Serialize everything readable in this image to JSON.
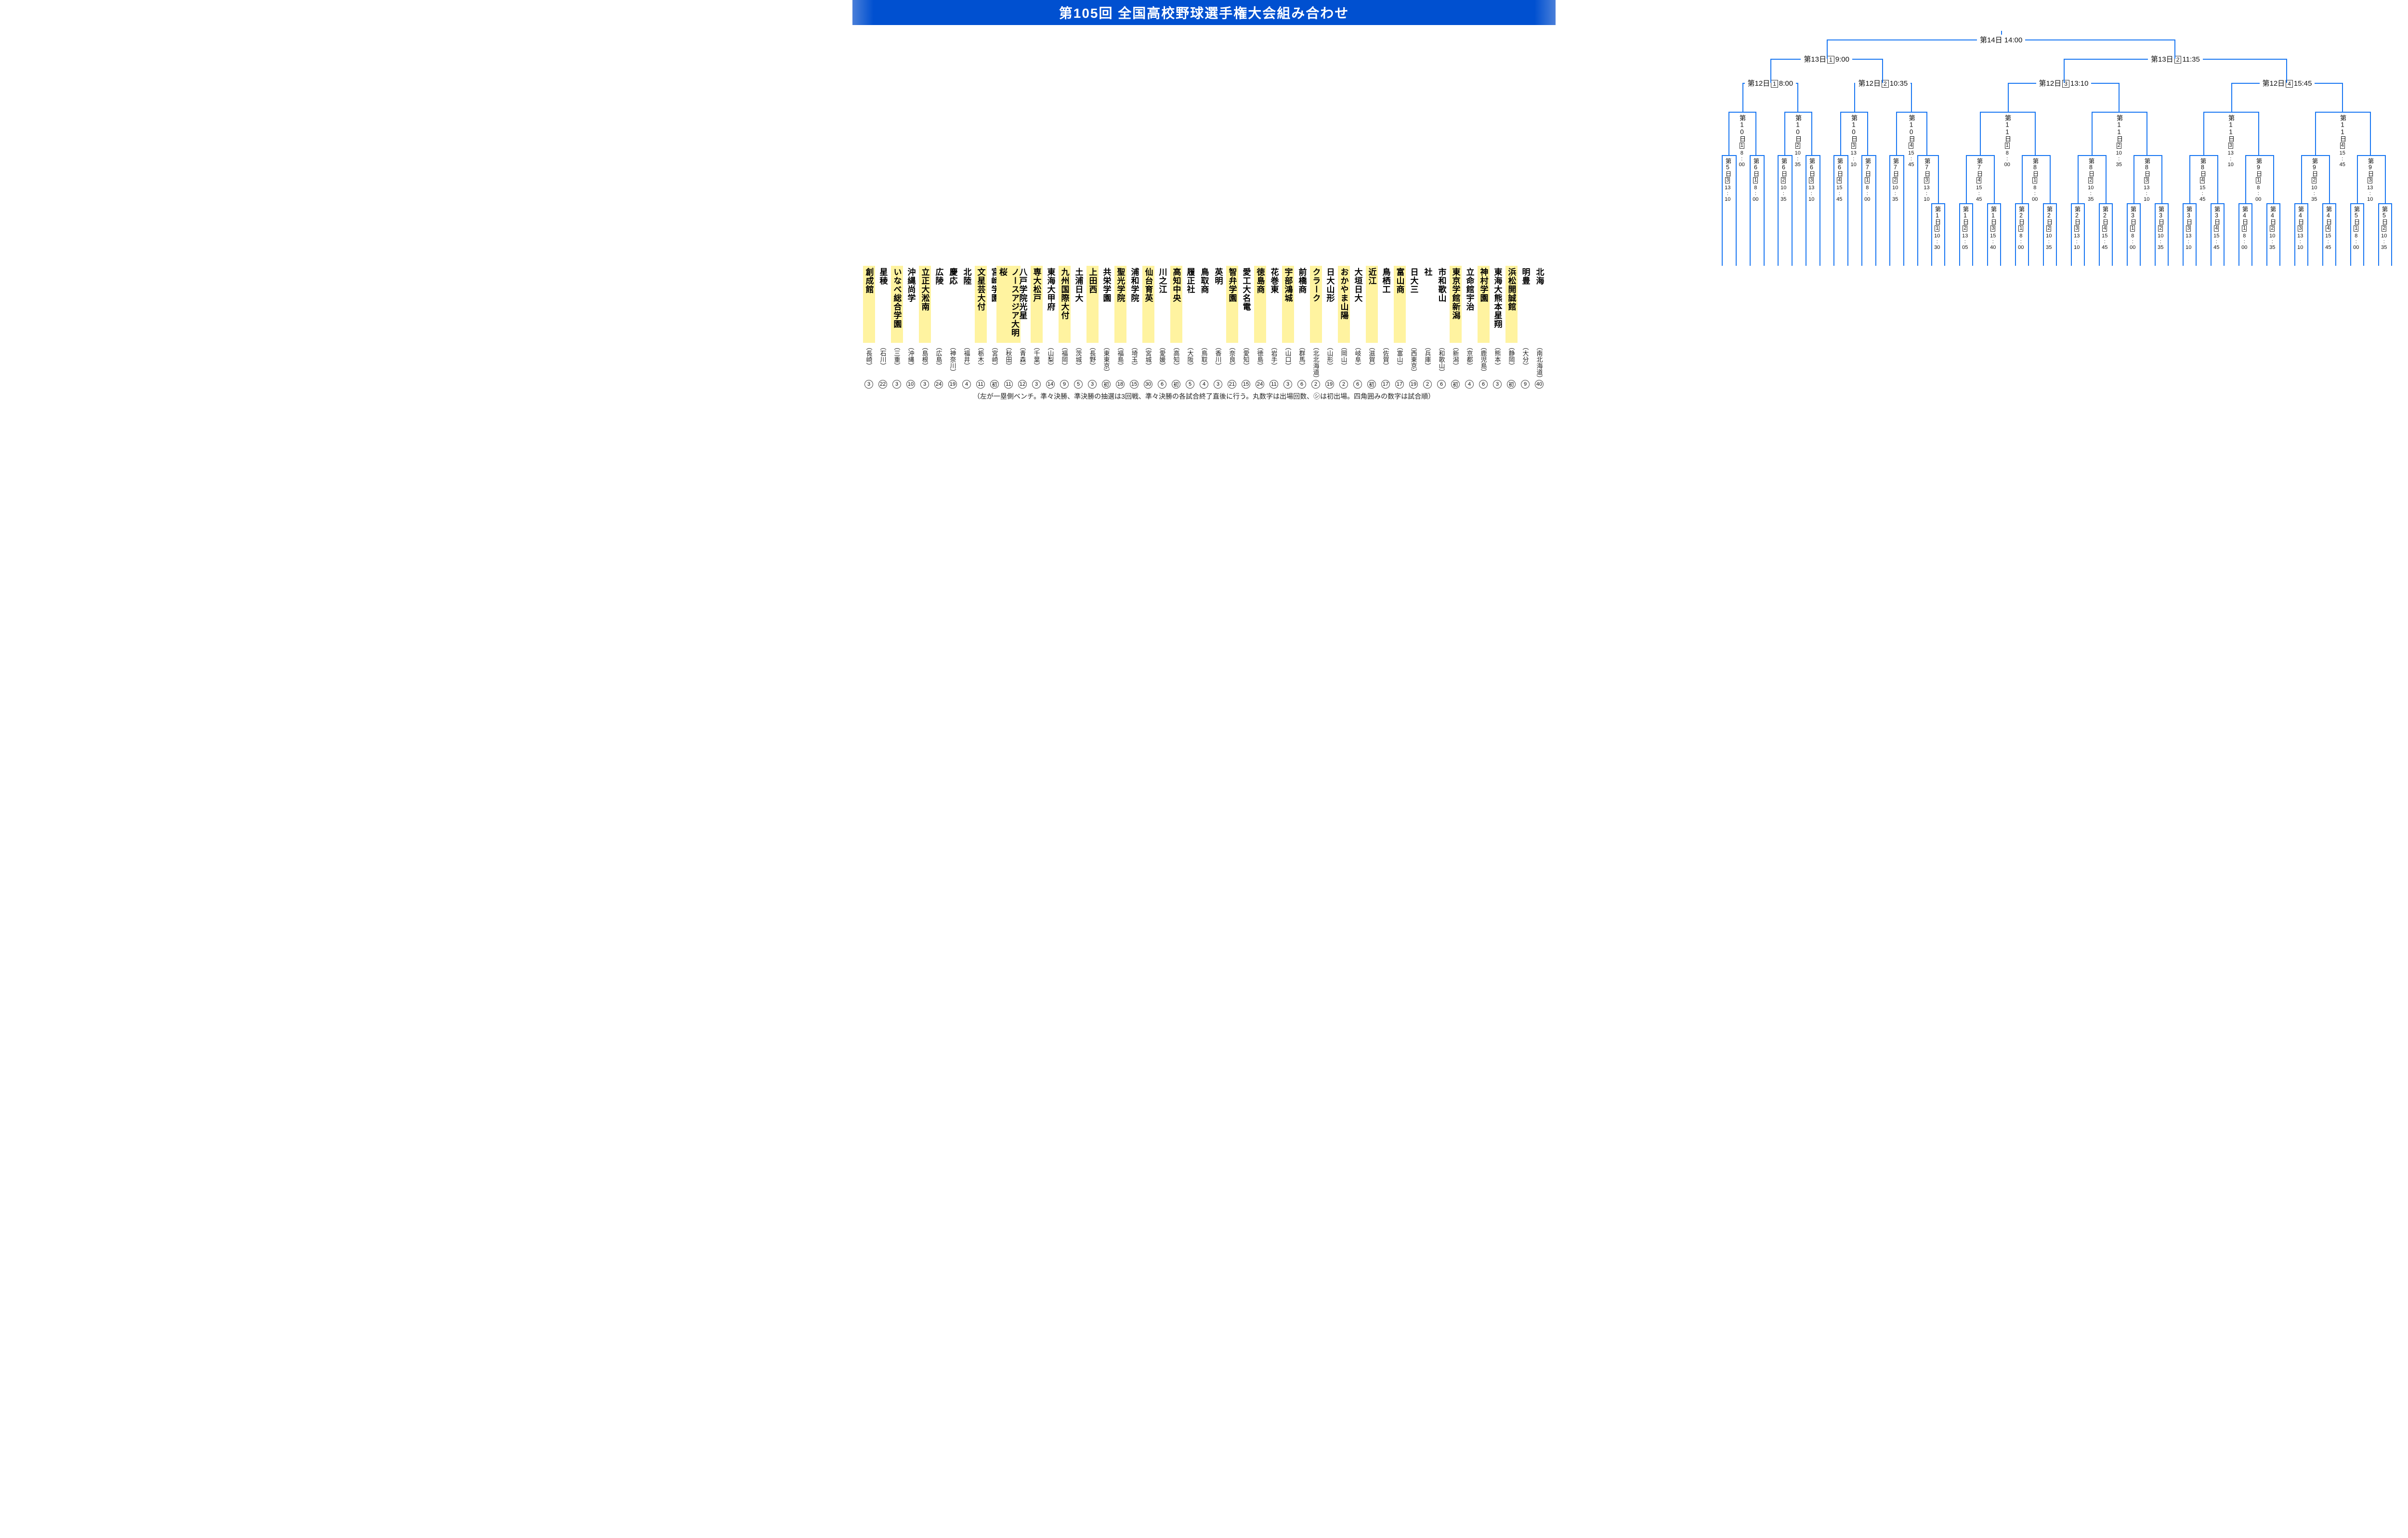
{
  "title": "第105回 全国高校野球選手権大会組み合わせ",
  "footer": "（左が一塁側ベンチ。準々決勝、準決勝の抽選は3回戦、準々決勝の各試合終了直後に行う。丸数字は出場回数、㋛は初出場。四角囲みの数字は試合順）",
  "colors": {
    "line": "#1876f2",
    "highlight": "#fff3a0",
    "header_bg": "#0050d0"
  },
  "bracket": {
    "line_width": 2.5,
    "team_col_width": 29,
    "team_name_fontsize": 17,
    "pref_fontsize": 13
  },
  "final": {
    "label": "第14日 14:00"
  },
  "semis": [
    {
      "label": "第13日",
      "sq": "1",
      "time": "9:00"
    },
    {
      "label": "第13日",
      "sq": "2",
      "time": "11:35"
    }
  ],
  "quarters": [
    {
      "label": "第12日",
      "sq": "1",
      "time": "8:00"
    },
    {
      "label": "第12日",
      "sq": "2",
      "time": "10:35"
    },
    {
      "label": "第12日",
      "sq": "3",
      "time": "13:10"
    },
    {
      "label": "第12日",
      "sq": "4",
      "time": "15:45"
    }
  ],
  "round3": [
    {
      "day": "第10日",
      "sq": "1",
      "time": "8:00"
    },
    {
      "day": "第10日",
      "sq": "2",
      "time": "10:35"
    },
    {
      "day": "第10日",
      "sq": "3",
      "time": "13:10"
    },
    {
      "day": "第10日",
      "sq": "4",
      "time": "15:45"
    },
    {
      "day": "第11日",
      "sq": "1",
      "time": "8:00"
    },
    {
      "day": "第11日",
      "sq": "2",
      "time": "10:35"
    },
    {
      "day": "第11日",
      "sq": "3",
      "time": "13:10"
    },
    {
      "day": "第11日",
      "sq": "4",
      "time": "15:45"
    }
  ],
  "round2": [
    {
      "day": "第5日",
      "sq": "3",
      "time": "13:10"
    },
    {
      "day": "第6日",
      "sq": "1",
      "time": "8:00"
    },
    {
      "day": "第6日",
      "sq": "2",
      "time": "10:35"
    },
    {
      "day": "第6日",
      "sq": "3",
      "time": "13:10"
    },
    {
      "day": "第6日",
      "sq": "4",
      "time": "15:45"
    },
    {
      "day": "第7日",
      "sq": "1",
      "time": "8:00"
    },
    {
      "day": "第7日",
      "sq": "2",
      "time": "10:35"
    },
    {
      "day": "第7日",
      "sq": "3",
      "time": "13:10"
    },
    {
      "day": "第7日",
      "sq": "4",
      "time": "15:45"
    },
    {
      "day": "第8日",
      "sq": "1",
      "time": "8:00"
    },
    {
      "day": "第8日",
      "sq": "2",
      "time": "10:35"
    },
    {
      "day": "第8日",
      "sq": "3",
      "time": "13:10"
    },
    {
      "day": "第8日",
      "sq": "4",
      "time": "15:45"
    },
    {
      "day": "第9日",
      "sq": "1",
      "time": "8:00"
    },
    {
      "day": "第9日",
      "sq": "2",
      "time": "10:35"
    },
    {
      "day": "第9日",
      "sq": "3",
      "time": "13:10"
    }
  ],
  "round1": [
    {
      "day": "第1日",
      "sq": "1",
      "time": "10:30"
    },
    {
      "day": "第1日",
      "sq": "2",
      "time": "13:05"
    },
    {
      "day": "第1日",
      "sq": "3",
      "time": "15:40"
    },
    {
      "day": "第2日",
      "sq": "1",
      "time": "8:00"
    },
    {
      "day": "第2日",
      "sq": "2",
      "time": "10:35"
    },
    {
      "day": "第2日",
      "sq": "3",
      "time": "13:10"
    },
    {
      "day": "第2日",
      "sq": "4",
      "time": "15:45"
    },
    {
      "day": "第3日",
      "sq": "1",
      "time": "8:00"
    },
    {
      "day": "第3日",
      "sq": "2",
      "time": "10:35"
    },
    {
      "day": "第3日",
      "sq": "3",
      "time": "13:10"
    },
    {
      "day": "第3日",
      "sq": "4",
      "time": "15:45"
    },
    {
      "day": "第4日",
      "sq": "1",
      "time": "8:00"
    },
    {
      "day": "第4日",
      "sq": "2",
      "time": "10:35"
    },
    {
      "day": "第4日",
      "sq": "3",
      "time": "13:10"
    },
    {
      "day": "第4日",
      "sq": "4",
      "time": "15:45"
    },
    {
      "day": "第5日",
      "sq": "1",
      "time": "8:00"
    },
    {
      "day": "第5日",
      "sq": "2",
      "time": "10:35"
    }
  ],
  "round1_slots": [
    2,
    3,
    3,
    4,
    4,
    5,
    5,
    6,
    6,
    7,
    7,
    8,
    8,
    9,
    9,
    10,
    10
  ],
  "teams": [
    {
      "name": "創成館",
      "pref": "長崎",
      "app": "3",
      "hl": true
    },
    {
      "name": "星稜",
      "pref": "石川",
      "app": "22",
      "hl": false
    },
    {
      "name": "いなべ総合学園",
      "pref": "三重",
      "app": "3",
      "hl": true
    },
    {
      "name": "沖縄尚学",
      "pref": "沖縄",
      "app": "10",
      "hl": false
    },
    {
      "name": "立正大淞南",
      "pref": "島根",
      "app": "3",
      "hl": true
    },
    {
      "name": "広陵",
      "pref": "広島",
      "app": "24",
      "hl": false
    },
    {
      "name": "慶応",
      "pref": "神奈川",
      "app": "19",
      "hl": false
    },
    {
      "name": "北陸",
      "pref": "福井",
      "app": "4",
      "hl": false
    },
    {
      "name": "文星芸大付",
      "pref": "栃木",
      "app": "11",
      "hl": true
    },
    {
      "name": "宮崎学園",
      "pref": "宮崎",
      "app": "初",
      "hl": false
    },
    {
      "name": "ノースアジア大明桜",
      "pref": "秋田",
      "app": "11",
      "hl": true
    },
    {
      "name": "八戸学院光星",
      "pref": "青森",
      "app": "12",
      "hl": false
    },
    {
      "name": "専大松戸",
      "pref": "千葉",
      "app": "3",
      "hl": true
    },
    {
      "name": "東海大甲府",
      "pref": "山梨",
      "app": "14",
      "hl": false
    },
    {
      "name": "九州国際大付",
      "pref": "福岡",
      "app": "9",
      "hl": true
    },
    {
      "name": "土浦日大",
      "pref": "茨城",
      "app": "5",
      "hl": false
    },
    {
      "name": "上田西",
      "pref": "長野",
      "app": "3",
      "hl": true
    },
    {
      "name": "共栄学園",
      "pref": "東東京",
      "app": "初",
      "hl": false
    },
    {
      "name": "聖光学院",
      "pref": "福島",
      "app": "18",
      "hl": true
    },
    {
      "name": "浦和学院",
      "pref": "埼玉",
      "app": "15",
      "hl": false
    },
    {
      "name": "仙台育英",
      "pref": "宮城",
      "app": "30",
      "hl": true
    },
    {
      "name": "川之江",
      "pref": "愛媛",
      "app": "6",
      "hl": false
    },
    {
      "name": "高知中央",
      "pref": "高知",
      "app": "初",
      "hl": true
    },
    {
      "name": "履正社",
      "pref": "大阪",
      "app": "5",
      "hl": false
    },
    {
      "name": "鳥取商",
      "pref": "鳥取",
      "app": "4",
      "hl": false
    },
    {
      "name": "英明",
      "pref": "香川",
      "app": "3",
      "hl": false
    },
    {
      "name": "智弁学園",
      "pref": "奈良",
      "app": "21",
      "hl": true
    },
    {
      "name": "愛工大名電",
      "pref": "愛知",
      "app": "15",
      "hl": false
    },
    {
      "name": "徳島商",
      "pref": "徳島",
      "app": "24",
      "hl": true
    },
    {
      "name": "花巻東",
      "pref": "岩手",
      "app": "11",
      "hl": false
    },
    {
      "name": "宇部鴻城",
      "pref": "山口",
      "app": "3",
      "hl": true
    },
    {
      "name": "前橋商",
      "pref": "群馬",
      "app": "6",
      "hl": false
    },
    {
      "name": "クラーク",
      "pref": "北北海道",
      "app": "2",
      "hl": true
    },
    {
      "name": "日大山形",
      "pref": "山形",
      "app": "19",
      "hl": false
    },
    {
      "name": "おかやま山陽",
      "pref": "岡山",
      "app": "2",
      "hl": true
    },
    {
      "name": "大垣日大",
      "pref": "岐阜",
      "app": "6",
      "hl": false
    },
    {
      "name": "近江",
      "pref": "滋賀",
      "app": "初",
      "hl": true
    },
    {
      "name": "鳥栖工",
      "pref": "佐賀",
      "app": "17",
      "hl": false
    },
    {
      "name": "富山商",
      "pref": "富山",
      "app": "17",
      "hl": true
    },
    {
      "name": "日大三",
      "pref": "西東京",
      "app": "19",
      "hl": false
    },
    {
      "name": "社",
      "pref": "兵庫",
      "app": "2",
      "hl": false
    },
    {
      "name": "市和歌山",
      "pref": "和歌山",
      "app": "6",
      "hl": false
    },
    {
      "name": "東京学館新潟",
      "pref": "新潟",
      "app": "初",
      "hl": true
    },
    {
      "name": "立命館宇治",
      "pref": "京都",
      "app": "4",
      "hl": false
    },
    {
      "name": "神村学園",
      "pref": "鹿児島",
      "app": "6",
      "hl": true
    },
    {
      "name": "東海大熊本星翔",
      "pref": "熊本",
      "app": "3",
      "hl": false
    },
    {
      "name": "浜松開誠館",
      "pref": "静岡",
      "app": "初",
      "hl": true
    },
    {
      "name": "明豊",
      "pref": "大分",
      "app": "9",
      "hl": false
    },
    {
      "name": "北海",
      "pref": "南北海道",
      "app": "40",
      "hl": false
    }
  ]
}
